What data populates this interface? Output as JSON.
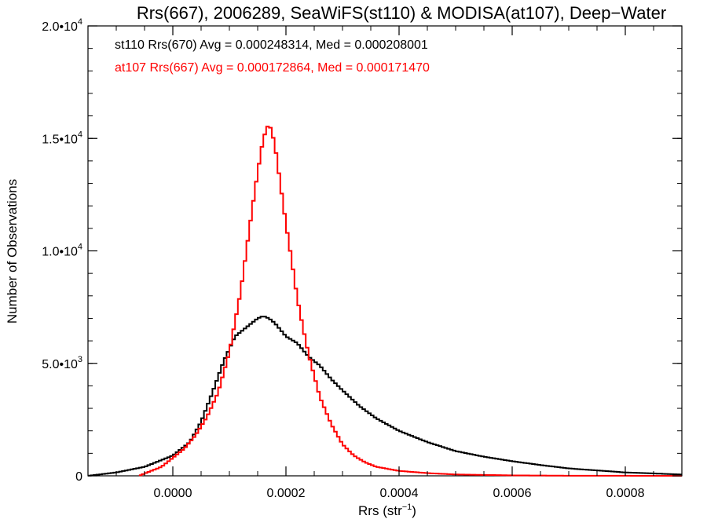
{
  "chart_data": {
    "type": "line",
    "title": "Rrs(667), 2006289, SeaWiFS(st110) & MODISA(at107), Deep−Water",
    "xlabel": {
      "base": "Rrs (str",
      "sup": "−1",
      "end": ")"
    },
    "ylabel": "Number of Observations",
    "xlim": [
      -0.00015,
      0.0009
    ],
    "ylim": [
      0,
      20000
    ],
    "grid": false,
    "xticks": [
      {
        "value": 0.0,
        "label": "0.0000"
      },
      {
        "value": 0.0002,
        "label": "0.0002"
      },
      {
        "value": 0.0004,
        "label": "0.0004"
      },
      {
        "value": 0.0006,
        "label": "0.0006"
      },
      {
        "value": 0.0008,
        "label": "0.0008"
      }
    ],
    "yticks": [
      {
        "value": 0,
        "mant": "0",
        "exp": ""
      },
      {
        "value": 5000,
        "mant": "5.0•10",
        "exp": "3"
      },
      {
        "value": 10000,
        "mant": "1.0•10",
        "exp": "4"
      },
      {
        "value": 15000,
        "mant": "1.5•10",
        "exp": "4"
      },
      {
        "value": 20000,
        "mant": "2.0•10",
        "exp": "4"
      }
    ],
    "annotations": [
      {
        "text": "st110 Rrs(670) Avg = 0.000248314, Med = 0.000208001",
        "color": "#000000"
      },
      {
        "text": "at107 Rrs(667) Avg = 0.000172864, Med = 0.000171470",
        "color": "#ff0000"
      }
    ],
    "series": [
      {
        "color": "#000000",
        "x": [
          -0.00015,
          -0.0001,
          -5e-05,
          0.0,
          3e-05,
          5e-05,
          7e-05,
          9e-05,
          0.00011,
          0.00013,
          0.00015,
          0.00016,
          0.00017,
          0.00018,
          0.0002,
          0.00022,
          0.00024,
          0.00026,
          0.00028,
          0.0003,
          0.00033,
          0.00036,
          0.0004,
          0.00045,
          0.0005,
          0.00055,
          0.0006,
          0.00065,
          0.0007,
          0.0008,
          0.0009
        ],
        "y": [
          0,
          150,
          400,
          900,
          1500,
          2400,
          3700,
          5100,
          6200,
          6600,
          7000,
          7100,
          7000,
          6800,
          6200,
          5900,
          5300,
          4900,
          4300,
          3800,
          3100,
          2550,
          2000,
          1500,
          1100,
          850,
          650,
          480,
          330,
          150,
          60
        ]
      },
      {
        "color": "#ff0000",
        "x": [
          -6e-05,
          -4e-05,
          -2e-05,
          0.0,
          2e-05,
          4e-05,
          6e-05,
          8e-05,
          0.0001,
          0.00012,
          0.00014,
          0.00015,
          0.00016,
          0.00017,
          0.00018,
          0.00019,
          0.0002,
          0.00021,
          0.00022,
          0.00023,
          0.00024,
          0.00026,
          0.00028,
          0.0003,
          0.00032,
          0.00034,
          0.00036,
          0.0004,
          0.00045,
          0.0005,
          0.0006,
          0.0007,
          0.0009
        ],
        "y": [
          0,
          200,
          400,
          800,
          1200,
          1800,
          2600,
          3700,
          5500,
          8200,
          11800,
          13500,
          15000,
          15700,
          14800,
          13000,
          11200,
          9600,
          7900,
          6600,
          5400,
          3500,
          2300,
          1400,
          900,
          600,
          400,
          220,
          120,
          60,
          20,
          5,
          0
        ]
      }
    ]
  }
}
